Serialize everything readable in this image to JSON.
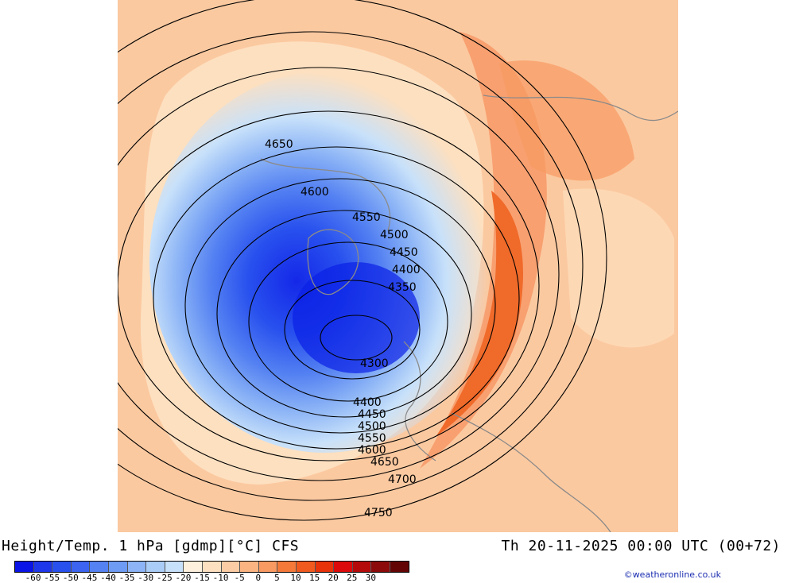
{
  "title": {
    "left": "Height/Temp. 1 hPa [gdmp][°C] CFS",
    "right": "Th 20-11-2025 00:00 UTC (00+72)"
  },
  "credit": "©weatheronline.co.uk",
  "colorbar": {
    "colors": [
      "#0a14e6",
      "#1e37eb",
      "#2850ee",
      "#3c64f0",
      "#5582f2",
      "#6e9bf4",
      "#8cb4f6",
      "#aacdf8",
      "#c8e1fa",
      "#fdf0dc",
      "#fde0c0",
      "#fccca4",
      "#fab482",
      "#f89a62",
      "#f57a3a",
      "#f05a1e",
      "#e8320a",
      "#dc0a0a",
      "#b40a0a",
      "#8c0a0a",
      "#640505"
    ],
    "labels": [
      "-60",
      "-55",
      "-50",
      "-45",
      "-40",
      "-35",
      "-30",
      "-25",
      "-20",
      "-15",
      "-10",
      "-5",
      "0",
      "5",
      "10",
      "15",
      "20",
      "25",
      "30"
    ]
  },
  "contours": [
    {
      "value": "4300",
      "label": "4300"
    },
    {
      "value": "4350",
      "label": "4350"
    },
    {
      "value": "4400",
      "label": "4400"
    },
    {
      "value": "4450",
      "label": "4450"
    },
    {
      "value": "4500",
      "label": "4500"
    },
    {
      "value": "4550",
      "label": "4550"
    },
    {
      "value": "4600",
      "label": "4600"
    },
    {
      "value": "4650",
      "label": "4650"
    },
    {
      "value": "4700",
      "label": "4700"
    },
    {
      "value": "4750",
      "label": "4750"
    }
  ],
  "contour_labels_extra": [
    "4650",
    "4600",
    "4550",
    "4500",
    "4450",
    "4400",
    "4400",
    "4450",
    "4500",
    "4550",
    "4600",
    "4650",
    "4700",
    "4750"
  ],
  "colors": {
    "background_warm": "#fccca4",
    "cold_core": "#1e37eb",
    "warm_band": "#f57a3a"
  }
}
